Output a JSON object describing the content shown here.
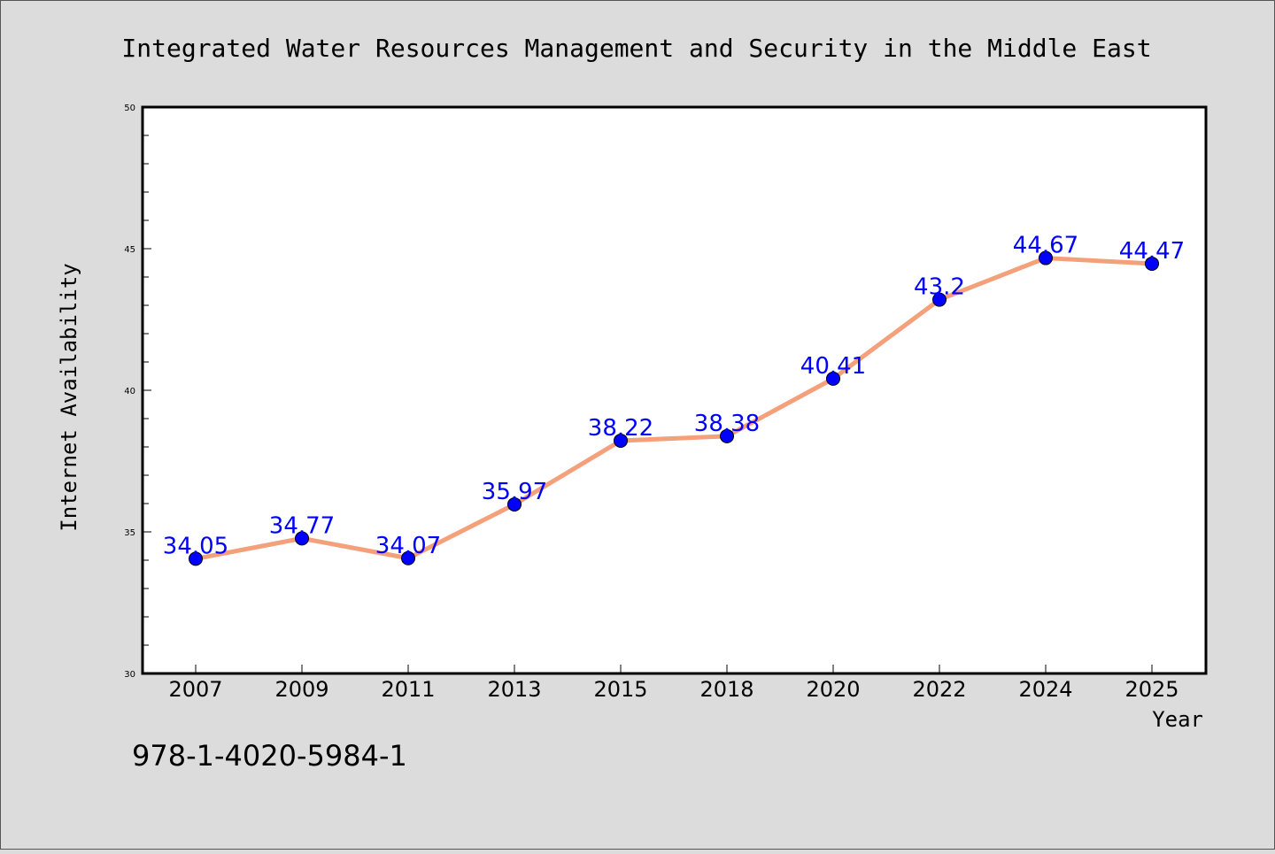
{
  "chart_data": {
    "type": "line",
    "title": "Integrated Water Resources Management and Security in the Middle East",
    "xlabel": "Year",
    "ylabel": "Internet Availability",
    "categories": [
      "2007",
      "2009",
      "2011",
      "2013",
      "2015",
      "2018",
      "2020",
      "2022",
      "2024",
      "2025"
    ],
    "series": [
      {
        "values": [
          34.05,
          34.77,
          34.07,
          35.97,
          38.22,
          38.38,
          40.41,
          43.2,
          44.67,
          44.47
        ],
        "data_labels": [
          "34.05",
          "34.77",
          "34.07",
          "35.97",
          "38.22",
          "38.38",
          "40.41",
          "43.2",
          "44.67",
          "44.47"
        ],
        "line_color": "#f4a07a",
        "marker_color": "#0000ff"
      }
    ],
    "ylim": [
      30,
      50
    ],
    "yticks": [
      "30",
      "35",
      "40",
      "45",
      "50"
    ],
    "grid": false,
    "legend": "none",
    "background_color": "#dcdcdc",
    "plot_background_color": "#ffffff"
  },
  "footer_text": "978-1-4020-5984-1"
}
